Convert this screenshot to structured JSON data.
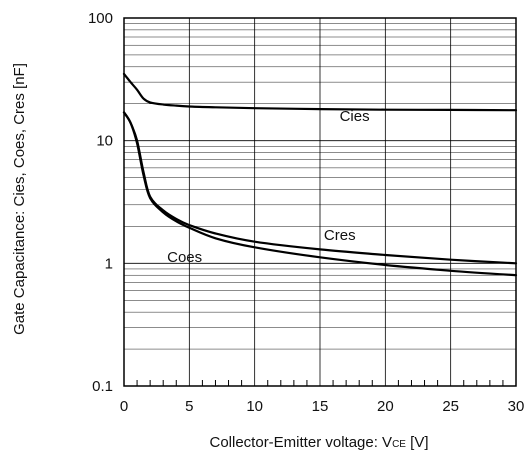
{
  "chart_data": {
    "type": "line",
    "ylabel": "Gate Capacitance: Cies, Coes, Cres [nF]",
    "xlabel": {
      "prefix": "Collector-Emitter voltage: V",
      "subscript": "CE",
      "suffix": " [V]"
    },
    "x_scale": "linear",
    "y_scale": "log",
    "xlim": [
      0,
      30
    ],
    "ylim": [
      0.1,
      100
    ],
    "grid": true,
    "x_ticks": [
      {
        "value": 0,
        "label": "0"
      },
      {
        "value": 5,
        "label": "5"
      },
      {
        "value": 10,
        "label": "10"
      },
      {
        "value": 15,
        "label": "15"
      },
      {
        "value": 20,
        "label": "20"
      },
      {
        "value": 25,
        "label": "25"
      },
      {
        "value": 30,
        "label": "30"
      }
    ],
    "y_ticks": [
      {
        "value": 0.1,
        "label": "0.1"
      },
      {
        "value": 1,
        "label": "1"
      },
      {
        "value": 10,
        "label": "10"
      },
      {
        "value": 100,
        "label": "100"
      }
    ],
    "series": [
      {
        "name": "Cies",
        "label_at": {
          "x": 16.5,
          "y": 14.5
        },
        "points": [
          [
            0,
            35
          ],
          [
            0.5,
            30
          ],
          [
            1,
            26
          ],
          [
            1.5,
            22
          ],
          [
            2,
            20.5
          ],
          [
            3,
            19.7
          ],
          [
            4,
            19.3
          ],
          [
            5,
            19
          ],
          [
            7,
            18.7
          ],
          [
            10,
            18.4
          ],
          [
            15,
            18.1
          ],
          [
            20,
            17.9
          ],
          [
            25,
            17.8
          ],
          [
            30,
            17.7
          ]
        ]
      },
      {
        "name": "Cres",
        "label_at": {
          "x": 15.3,
          "y": 1.55
        },
        "points": [
          [
            0,
            17
          ],
          [
            0.5,
            14
          ],
          [
            1,
            10
          ],
          [
            1.5,
            5.5
          ],
          [
            2,
            3.5
          ],
          [
            3,
            2.7
          ],
          [
            4,
            2.3
          ],
          [
            5,
            2.05
          ],
          [
            7,
            1.75
          ],
          [
            10,
            1.5
          ],
          [
            15,
            1.3
          ],
          [
            20,
            1.17
          ],
          [
            25,
            1.07
          ],
          [
            30,
            1.0
          ]
        ]
      },
      {
        "name": "Coes",
        "label_at": {
          "x": 3.3,
          "y": 1.03
        },
        "points": [
          [
            0,
            17
          ],
          [
            0.5,
            14
          ],
          [
            1,
            9.5
          ],
          [
            1.5,
            5.2
          ],
          [
            2,
            3.4
          ],
          [
            3,
            2.6
          ],
          [
            4,
            2.2
          ],
          [
            5,
            1.95
          ],
          [
            7,
            1.6
          ],
          [
            10,
            1.35
          ],
          [
            15,
            1.12
          ],
          [
            20,
            0.97
          ],
          [
            25,
            0.87
          ],
          [
            30,
            0.8
          ]
        ]
      }
    ]
  }
}
